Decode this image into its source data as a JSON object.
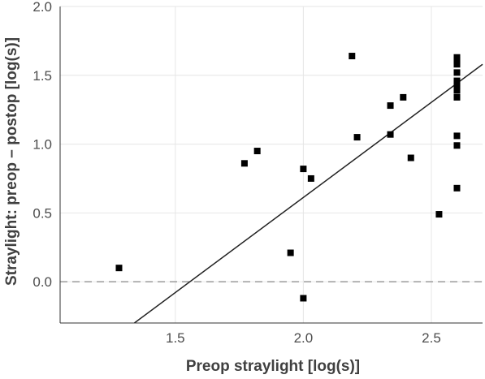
{
  "chart_data": {
    "type": "scatter",
    "xlabel": "Preop straylight [log(s)]",
    "ylabel": "Straylight: preop – postop [log(s)]",
    "xlim": [
      1.05,
      2.7
    ],
    "ylim": [
      -0.3,
      2.0
    ],
    "xticks": [
      1.5,
      2.0,
      2.5
    ],
    "yticks": [
      0.0,
      0.5,
      1.0,
      1.5,
      2.0
    ],
    "xtick_labels": [
      "1.5",
      "2.0",
      "2.5"
    ],
    "ytick_labels": [
      "0.0",
      "0.5",
      "1.0",
      "1.5",
      "2.0"
    ],
    "grid": true,
    "marker": "square",
    "points": [
      {
        "x": 1.28,
        "y": 0.1
      },
      {
        "x": 1.77,
        "y": 0.86
      },
      {
        "x": 1.82,
        "y": 0.95
      },
      {
        "x": 1.95,
        "y": 0.21
      },
      {
        "x": 2.0,
        "y": 0.82
      },
      {
        "x": 2.0,
        "y": -0.12
      },
      {
        "x": 2.03,
        "y": 0.75
      },
      {
        "x": 2.19,
        "y": 1.64
      },
      {
        "x": 2.21,
        "y": 1.05
      },
      {
        "x": 2.34,
        "y": 1.28
      },
      {
        "x": 2.34,
        "y": 1.07
      },
      {
        "x": 2.39,
        "y": 1.34
      },
      {
        "x": 2.42,
        "y": 0.9
      },
      {
        "x": 2.53,
        "y": 0.49
      },
      {
        "x": 2.6,
        "y": 1.63
      },
      {
        "x": 2.6,
        "y": 1.61
      },
      {
        "x": 2.6,
        "y": 1.58
      },
      {
        "x": 2.6,
        "y": 1.52
      },
      {
        "x": 2.6,
        "y": 1.46
      },
      {
        "x": 2.6,
        "y": 1.44
      },
      {
        "x": 2.6,
        "y": 1.42
      },
      {
        "x": 2.6,
        "y": 1.39
      },
      {
        "x": 2.6,
        "y": 1.34
      },
      {
        "x": 2.6,
        "y": 1.06
      },
      {
        "x": 2.6,
        "y": 0.99
      },
      {
        "x": 2.6,
        "y": 0.68
      }
    ],
    "fit_line": {
      "x": [
        1.34,
        2.7
      ],
      "y": [
        -0.3,
        1.58
      ]
    },
    "reference_line": {
      "y": 0.0,
      "style": "dashed"
    }
  }
}
